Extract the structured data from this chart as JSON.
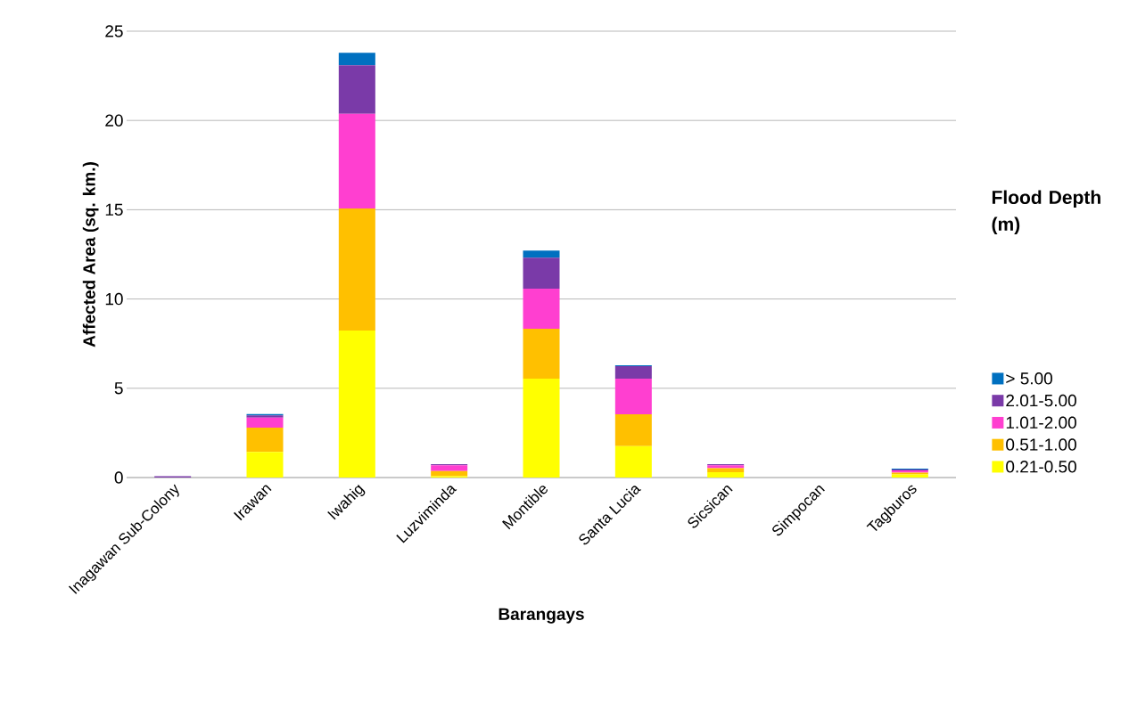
{
  "chart_data": {
    "type": "bar",
    "stacked": true,
    "xlabel": "Barangays",
    "ylabel": "Affected Area (sq. km.)",
    "legend_title": "Flood Depth (m)",
    "categories": [
      "Inagawan Sub-Colony",
      "Irawan",
      "Iwahig",
      "Luzviminda",
      "Montible",
      "Santa Lucia",
      "Sicsican",
      "Simpocan",
      "Tagburos"
    ],
    "series": [
      {
        "name": "0.21-0.50",
        "color": "#ffff00",
        "values": [
          0,
          1.43,
          8.23,
          0.08,
          5.54,
          1.76,
          0.3,
          0,
          0.17
        ]
      },
      {
        "name": "0.51-1.00",
        "color": "#ffc000",
        "values": [
          0,
          1.36,
          6.84,
          0.28,
          2.79,
          1.78,
          0.23,
          0,
          0.11
        ]
      },
      {
        "name": "1.01-2.00",
        "color": "#ff3fd0",
        "values": [
          0,
          0.57,
          5.3,
          0.32,
          2.25,
          2.0,
          0.15,
          0,
          0.12
        ]
      },
      {
        "name": "2.01-5.00",
        "color": "#7a3aa8",
        "values": [
          0.07,
          0.12,
          2.72,
          0.07,
          1.73,
          0.7,
          0.07,
          0,
          0.05
        ]
      },
      {
        "name": "> 5.00",
        "color": "#0070c0",
        "values": [
          0,
          0.08,
          0.7,
          0,
          0.4,
          0.05,
          0,
          0,
          0.05
        ]
      }
    ],
    "ylim": [
      0,
      25
    ],
    "yticks": [
      0,
      5,
      10,
      15,
      20,
      25
    ],
    "grid": "y",
    "legend": "right"
  }
}
